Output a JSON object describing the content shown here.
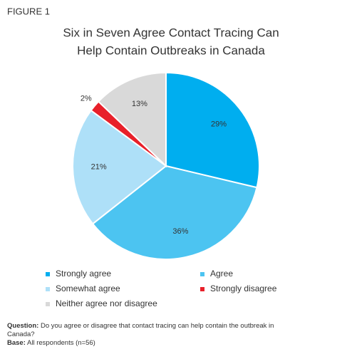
{
  "figure_label": "FIGURE 1",
  "chart_data": {
    "type": "pie",
    "title": [
      "Six in Seven Agree Contact Tracing Can",
      "Help Contain Outbreaks in Canada"
    ],
    "categories": [
      "Strongly agree",
      "Agree",
      "Somewhat agree",
      "Strongly disagree",
      "Neither agree nor disagree"
    ],
    "values": [
      29,
      36,
      21,
      2,
      13
    ],
    "value_labels": [
      "29%",
      "36%",
      "21%",
      "2%",
      "13%"
    ],
    "colors": [
      "#00aeef",
      "#4cc4f1",
      "#aee0f8",
      "#e8202a",
      "#d9d9d9"
    ],
    "legend": "bottom"
  },
  "notes": [
    {
      "label": "Question:",
      "text": "Do you agree or disagree that contact tracing can help contain the outbreak in Canada?"
    },
    {
      "label": "Base:",
      "text": "All respondents (n=56)"
    }
  ]
}
